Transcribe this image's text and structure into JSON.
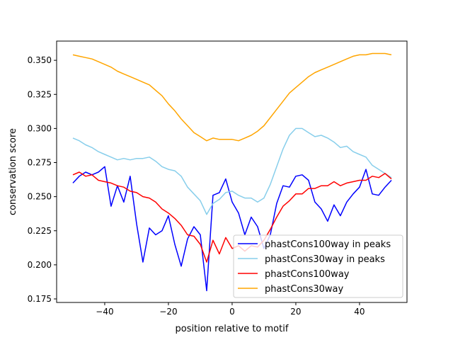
{
  "chart_data": {
    "type": "line",
    "title": "",
    "xlabel": "position relative to motif",
    "ylabel": "conservation score",
    "xlim": [
      -55.1,
      54.9
    ],
    "ylim": [
      0.1724,
      0.3641
    ],
    "xticks": [
      -40,
      -20,
      0,
      20,
      40
    ],
    "xtick_labels": [
      "−40",
      "−20",
      "0",
      "20",
      "40"
    ],
    "yticks": [
      0.175,
      0.2,
      0.225,
      0.25,
      0.275,
      0.3,
      0.325,
      0.35
    ],
    "ytick_labels": [
      "0.175",
      "0.200",
      "0.225",
      "0.250",
      "0.275",
      "0.300",
      "0.325",
      "0.350"
    ],
    "grid": false,
    "legend_position": "lower-right",
    "x": [
      -50,
      -48,
      -46,
      -44,
      -42,
      -40,
      -38,
      -36,
      -34,
      -32,
      -30,
      -28,
      -26,
      -24,
      -22,
      -20,
      -18,
      -16,
      -14,
      -12,
      -10,
      -8,
      -6,
      -4,
      -2,
      0,
      2,
      4,
      6,
      8,
      10,
      12,
      14,
      16,
      18,
      20,
      22,
      24,
      26,
      28,
      30,
      32,
      34,
      36,
      38,
      40,
      42,
      44,
      46,
      48,
      50
    ],
    "series": [
      {
        "name": "phastCons100way in peaks",
        "color": "#0000ff",
        "values": [
          0.26,
          0.265,
          0.268,
          0.266,
          0.268,
          0.272,
          0.243,
          0.258,
          0.246,
          0.265,
          0.23,
          0.202,
          0.227,
          0.222,
          0.225,
          0.236,
          0.215,
          0.199,
          0.219,
          0.228,
          0.222,
          0.181,
          0.251,
          0.253,
          0.263,
          0.246,
          0.238,
          0.222,
          0.235,
          0.228,
          0.212,
          0.222,
          0.245,
          0.258,
          0.257,
          0.265,
          0.266,
          0.262,
          0.246,
          0.241,
          0.232,
          0.244,
          0.236,
          0.246,
          0.252,
          0.257,
          0.27,
          0.252,
          0.251,
          0.257,
          0.262
        ]
      },
      {
        "name": "phastCons30way in peaks",
        "color": "#87ceeb",
        "values": [
          0.293,
          0.291,
          0.288,
          0.286,
          0.283,
          0.281,
          0.279,
          0.277,
          0.278,
          0.277,
          0.278,
          0.278,
          0.279,
          0.276,
          0.272,
          0.27,
          0.269,
          0.265,
          0.257,
          0.252,
          0.247,
          0.237,
          0.245,
          0.248,
          0.253,
          0.254,
          0.251,
          0.249,
          0.249,
          0.246,
          0.249,
          0.259,
          0.272,
          0.285,
          0.295,
          0.3,
          0.3,
          0.297,
          0.294,
          0.295,
          0.293,
          0.29,
          0.286,
          0.287,
          0.283,
          0.281,
          0.279,
          0.273,
          0.27,
          0.267,
          0.264
        ]
      },
      {
        "name": "phastCons100way",
        "color": "#ff0000",
        "values": [
          0.266,
          0.268,
          0.265,
          0.266,
          0.262,
          0.261,
          0.26,
          0.258,
          0.257,
          0.254,
          0.253,
          0.25,
          0.249,
          0.246,
          0.241,
          0.238,
          0.234,
          0.229,
          0.222,
          0.221,
          0.215,
          0.202,
          0.218,
          0.208,
          0.22,
          0.212,
          0.214,
          0.21,
          0.214,
          0.213,
          0.218,
          0.226,
          0.235,
          0.243,
          0.247,
          0.252,
          0.252,
          0.256,
          0.256,
          0.258,
          0.258,
          0.261,
          0.258,
          0.26,
          0.261,
          0.262,
          0.262,
          0.265,
          0.264,
          0.267,
          0.263
        ]
      },
      {
        "name": "phastCons30way",
        "color": "#ffa500",
        "values": [
          0.354,
          0.353,
          0.352,
          0.351,
          0.349,
          0.347,
          0.345,
          0.342,
          0.34,
          0.338,
          0.336,
          0.334,
          0.332,
          0.328,
          0.324,
          0.318,
          0.313,
          0.307,
          0.302,
          0.297,
          0.294,
          0.291,
          0.293,
          0.292,
          0.292,
          0.292,
          0.291,
          0.293,
          0.295,
          0.298,
          0.302,
          0.308,
          0.314,
          0.32,
          0.326,
          0.33,
          0.334,
          0.338,
          0.341,
          0.343,
          0.345,
          0.347,
          0.349,
          0.351,
          0.353,
          0.354,
          0.354,
          0.355,
          0.355,
          0.355,
          0.354
        ]
      }
    ]
  }
}
